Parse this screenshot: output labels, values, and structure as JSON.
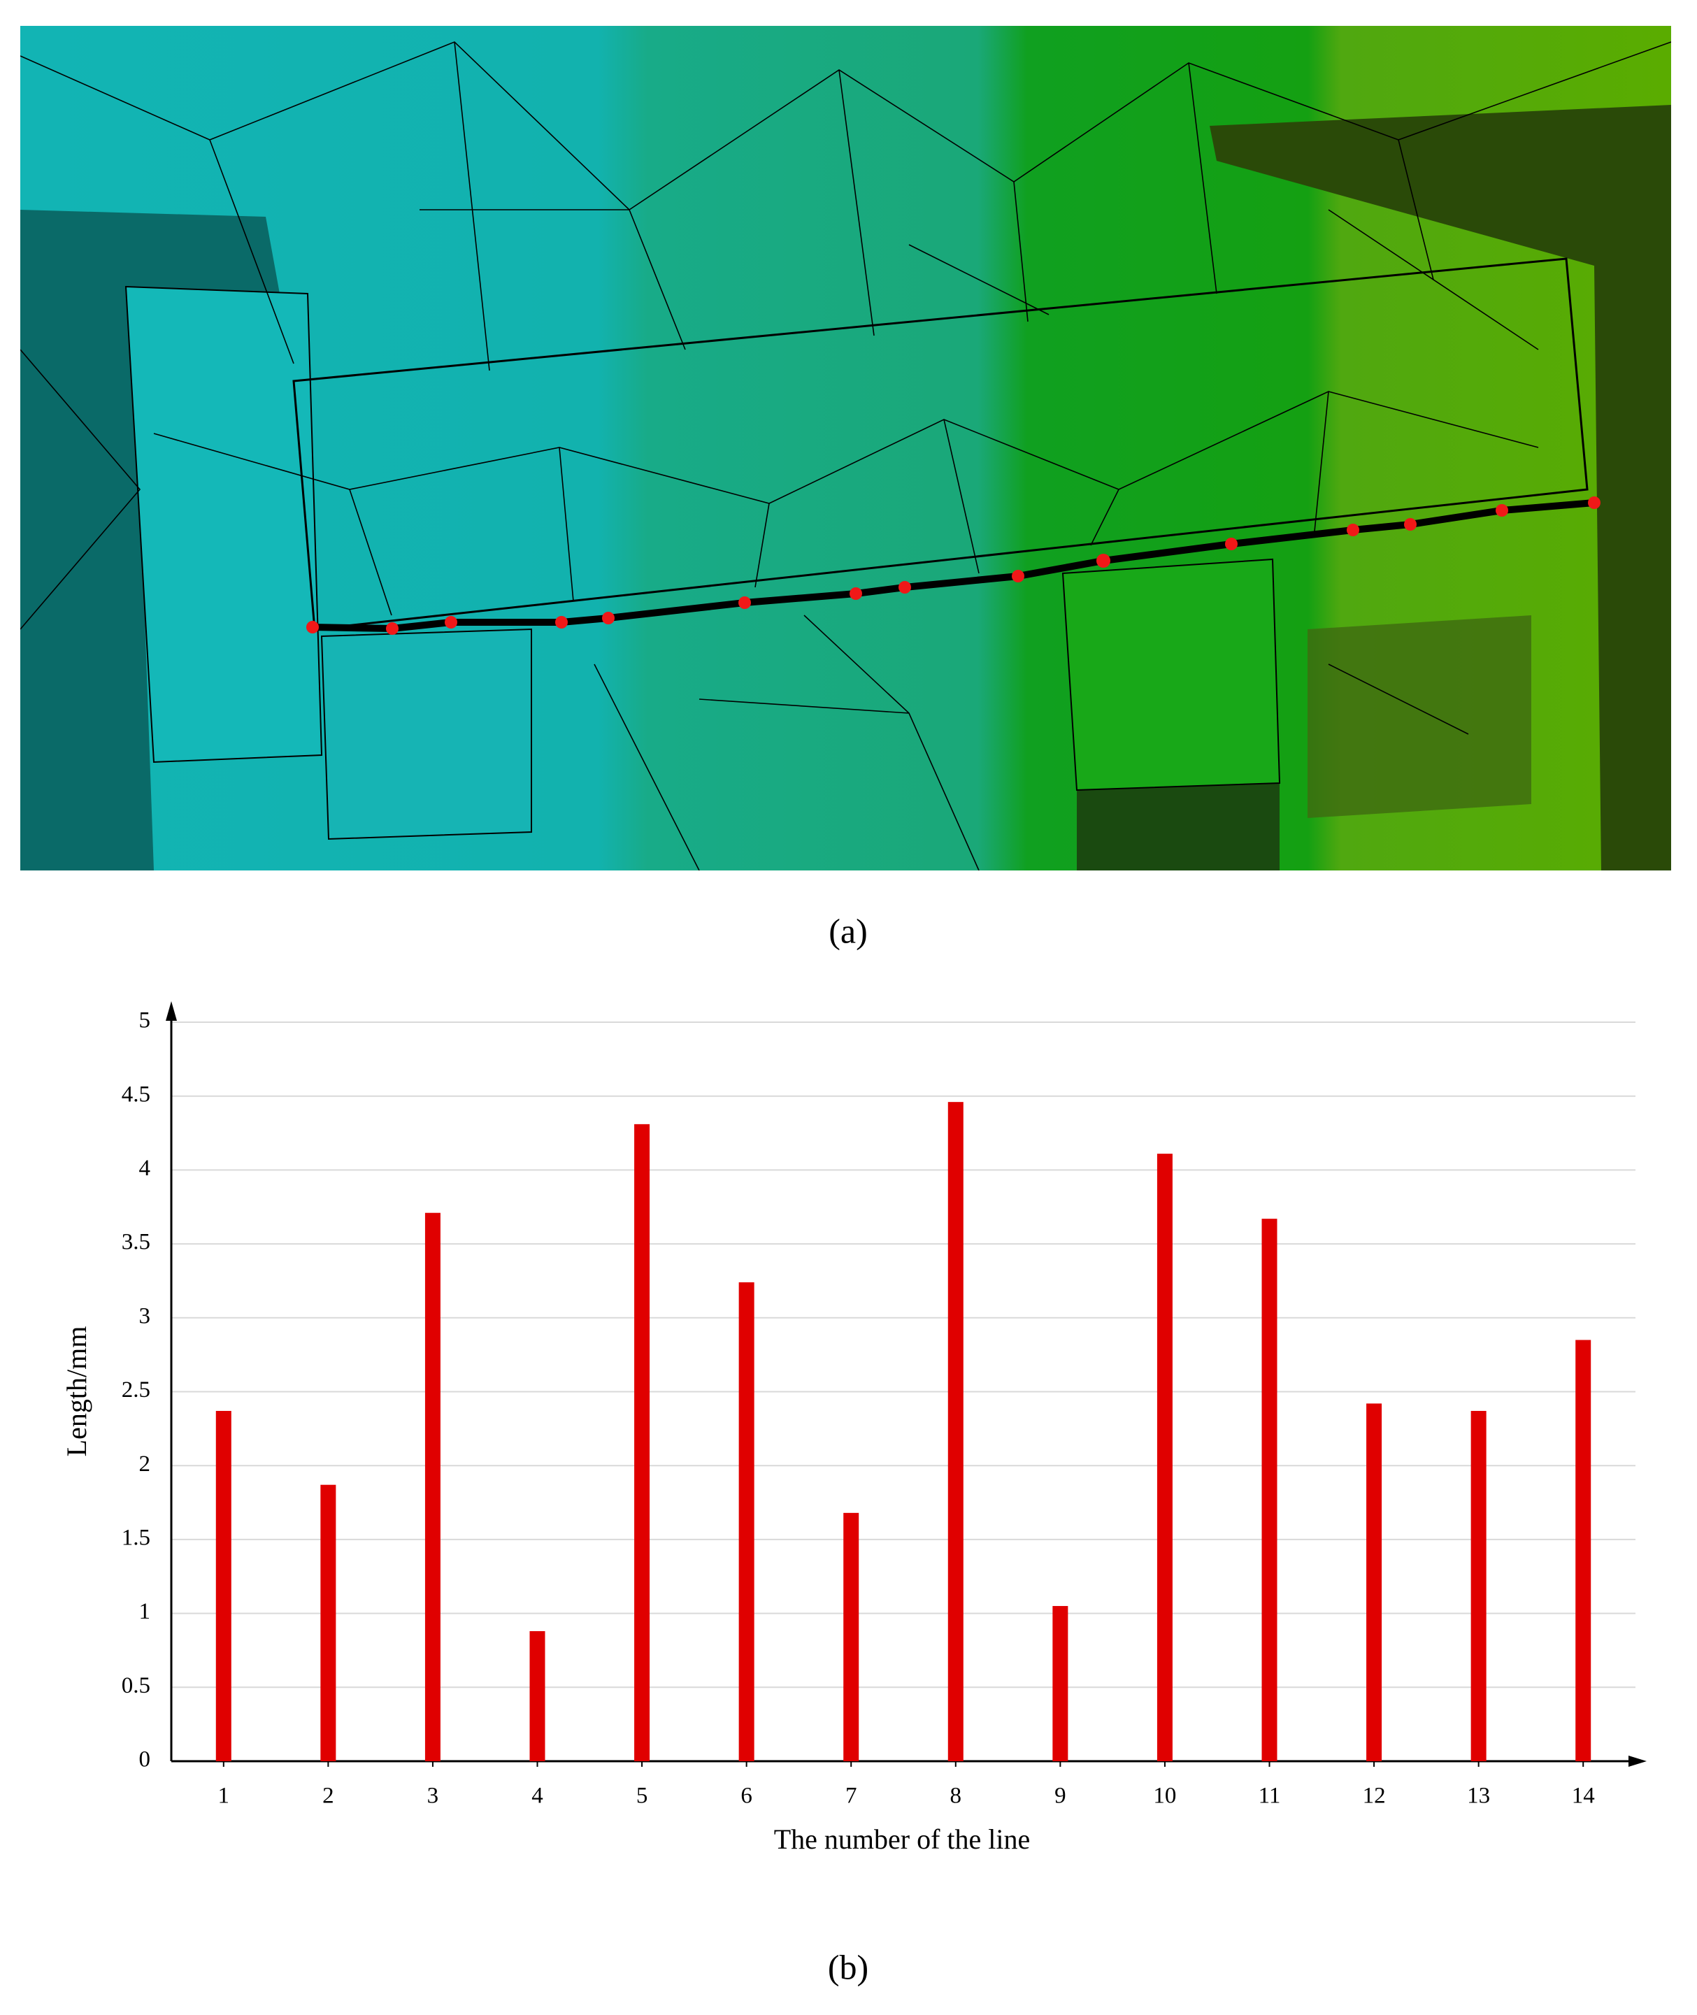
{
  "captions": {
    "a": "(a)",
    "b": "(b)"
  },
  "chart_data": {
    "type": "bar",
    "categories": [
      "1",
      "2",
      "3",
      "4",
      "5",
      "6",
      "7",
      "8",
      "9",
      "10",
      "11",
      "12",
      "13",
      "14"
    ],
    "values": [
      2.37,
      1.87,
      3.71,
      0.88,
      4.31,
      3.24,
      1.68,
      4.46,
      1.05,
      4.11,
      3.67,
      2.42,
      2.37,
      2.85
    ],
    "color": "#e00000",
    "xlabel": "The number of the line",
    "ylabel": "Length/mm",
    "ylim": [
      0,
      5
    ],
    "yticks": [
      0,
      0.5,
      1,
      1.5,
      2,
      2.5,
      3,
      3.5,
      4,
      4.5,
      5
    ],
    "grid": true
  }
}
